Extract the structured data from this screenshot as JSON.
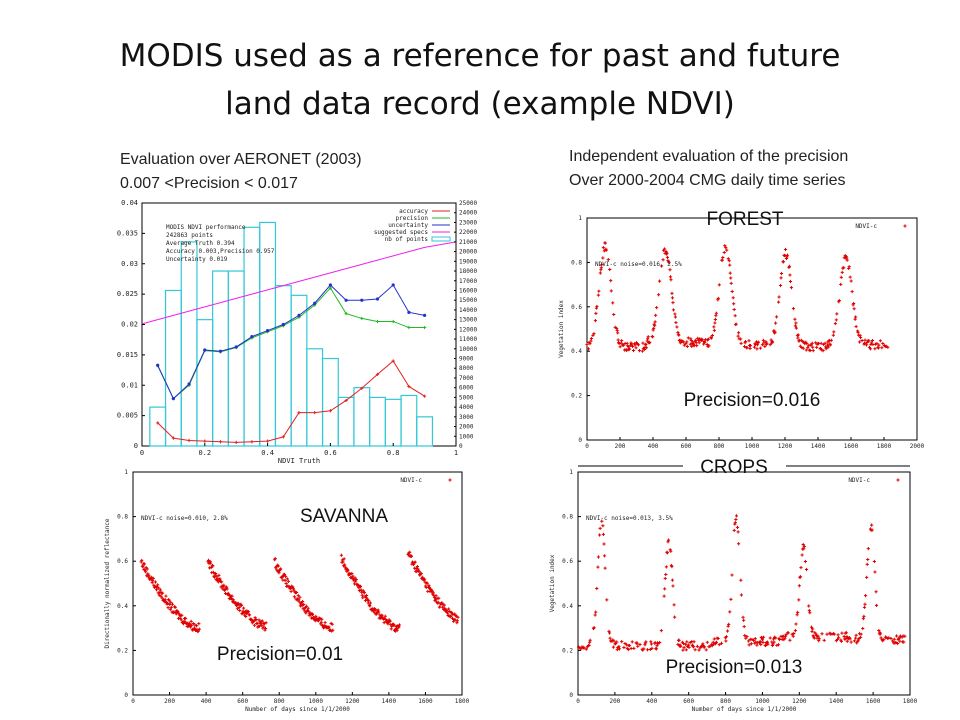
{
  "title": {
    "line1": "MODIS used as a reference for past and future",
    "line2": "land data record (example NDVI)"
  },
  "notes": {
    "left_line1": "Evaluation over AERONET (2003)",
    "left_line2": "0.007 <Precision < 0.017",
    "right_line1": "Independent evaluation of the precision",
    "right_line2": "Over 2000-2004 CMG daily time series"
  },
  "colors": {
    "accuracy": "#e32222",
    "precision": "#22b822",
    "uncertainty": "#2233cc",
    "specs": "#ee22ee",
    "bars": "#33c8d8",
    "points": "#e00000"
  },
  "chart_data": [
    {
      "type": "line",
      "panel": "top-left",
      "xlabel": "NDVI Truth",
      "xlim": [
        0,
        1
      ],
      "ylim": [
        0,
        0.04
      ],
      "y2lim": [
        0,
        25000
      ],
      "xticks": [
        "0",
        "0.2",
        "0.4",
        "0.6",
        "0.8",
        "1"
      ],
      "yticks": [
        "0",
        "0.005",
        "0.01",
        "0.015",
        "0.02",
        "0.025",
        "0.03",
        "0.035",
        "0.04"
      ],
      "y2ticks": [
        "0",
        "1000",
        "2000",
        "3000",
        "4000",
        "5000",
        "6000",
        "7000",
        "8000",
        "9000",
        "10000",
        "11000",
        "12000",
        "13000",
        "14000",
        "15000",
        "16000",
        "17000",
        "18000",
        "19000",
        "20000",
        "21000",
        "22000",
        "23000",
        "24000",
        "25000"
      ],
      "legend": [
        "accuracy",
        "precision",
        "uncertainty",
        "suggested specs",
        "nb of points"
      ],
      "legend_position": "top-right",
      "annotation": [
        "MODIS NDVI performance",
        "242863 points",
        "Average Truth 0.394",
        "Accuracy 0.003,Precision 0.957",
        "Uncertainty 0.019"
      ],
      "x": [
        0.05,
        0.1,
        0.15,
        0.2,
        0.25,
        0.3,
        0.35,
        0.4,
        0.45,
        0.5,
        0.55,
        0.6,
        0.65,
        0.7,
        0.75,
        0.8,
        0.85,
        0.9
      ],
      "series": [
        {
          "name": "accuracy",
          "values": [
            0.0038,
            0.0013,
            0.0009,
            0.0008,
            0.0007,
            0.0006,
            0.0007,
            0.0008,
            0.0015,
            0.0055,
            0.0055,
            0.0058,
            0.0075,
            0.0095,
            0.0118,
            0.014,
            0.0098,
            0.0082
          ]
        },
        {
          "name": "precision",
          "values": [
            0.0132,
            0.0078,
            0.01,
            0.0157,
            0.0155,
            0.0162,
            0.0178,
            0.0188,
            0.0198,
            0.0212,
            0.0232,
            0.026,
            0.0218,
            0.021,
            0.0205,
            0.0205,
            0.0195,
            0.0195
          ]
        },
        {
          "name": "uncertainty",
          "values": [
            0.0133,
            0.0078,
            0.0102,
            0.0158,
            0.0156,
            0.0163,
            0.018,
            0.019,
            0.02,
            0.0215,
            0.0235,
            0.0265,
            0.024,
            0.024,
            0.0242,
            0.0265,
            0.022,
            0.0215
          ]
        },
        {
          "name": "suggested specs",
          "values": [
            0.0208,
            0.0215,
            0.0222,
            0.0229,
            0.0236,
            0.0243,
            0.025,
            0.0257,
            0.0264,
            0.0271,
            0.0278,
            0.0285,
            0.0292,
            0.0299,
            0.0306,
            0.0313,
            0.032,
            0.0327
          ]
        }
      ],
      "bars": {
        "name": "nb of points",
        "values": [
          4000,
          16000,
          21000,
          13000,
          18000,
          18000,
          22500,
          23000,
          16500,
          15500,
          10000,
          9000,
          5000,
          6000,
          5000,
          4800,
          5200,
          3000
        ]
      }
    },
    {
      "type": "scatter",
      "panel": "top-right",
      "ylabel": "Vegetation index",
      "xlim": [
        0,
        2000
      ],
      "ylim": [
        0,
        1
      ],
      "xticks": [
        "0",
        "200",
        "400",
        "600",
        "800",
        "1000",
        "1200",
        "1400",
        "1600",
        "1800",
        "2000"
      ],
      "yticks": [
        "0",
        "0.2",
        "0.4",
        "0.6",
        "0.8",
        "1"
      ],
      "legend": [
        "NDVI-c"
      ],
      "annotation": "NDVI-c noise=0.016, 2.5%",
      "label": "FOREST",
      "precision_text": "Precision=0.016",
      "seasons": [
        {
          "peak": 0.87,
          "low": 0.42
        },
        {
          "peak": 0.86,
          "low": 0.44
        },
        {
          "peak": 0.87,
          "low": 0.43
        },
        {
          "peak": 0.84,
          "low": 0.42
        },
        {
          "peak": 0.82,
          "low": 0.43
        }
      ]
    },
    {
      "type": "scatter",
      "panel": "bottom-left",
      "xlabel": "Number of days since 1/1/2000",
      "ylabel": "Directionally normalized reflectance",
      "xlim": [
        0,
        1800
      ],
      "ylim": [
        0,
        1
      ],
      "xticks": [
        "0",
        "200",
        "400",
        "600",
        "800",
        "1000",
        "1200",
        "1400",
        "1600",
        "1800"
      ],
      "yticks": [
        "0",
        "0.2",
        "0.4",
        "0.6",
        "0.8",
        "1"
      ],
      "legend": [
        "NDVI-c"
      ],
      "annotation": "NDVI-c noise=0.010, 2.8%",
      "label": "SAVANNA",
      "precision_text": "Precision=0.01",
      "seasons": [
        {
          "peak": 0.6,
          "low": 0.3
        },
        {
          "peak": 0.6,
          "low": 0.31
        },
        {
          "peak": 0.6,
          "low": 0.3
        },
        {
          "peak": 0.62,
          "low": 0.3
        },
        {
          "peak": 0.64,
          "low": 0.32
        }
      ]
    },
    {
      "type": "scatter",
      "panel": "bottom-right",
      "xlabel": "Number of days since 1/1/2000",
      "ylabel": "Vegetation index",
      "xlim": [
        0,
        1800
      ],
      "ylim": [
        0,
        1
      ],
      "xticks": [
        "0",
        "200",
        "400",
        "600",
        "800",
        "1000",
        "1200",
        "1400",
        "1600",
        "1800"
      ],
      "yticks": [
        "0",
        "0.2",
        "0.4",
        "0.6",
        "0.8",
        "1"
      ],
      "legend": [
        "NDVI-c"
      ],
      "annotation": "NDVI-c noise=0.013, 3.5%",
      "label": "CROPS",
      "precision_text": "Precision=0.013",
      "seasons": [
        {
          "peak": 0.78,
          "low": 0.22
        },
        {
          "peak": 0.68,
          "low": 0.22
        },
        {
          "peak": 0.79,
          "low": 0.24
        },
        {
          "peak": 0.66,
          "low": 0.26
        },
        {
          "peak": 0.76,
          "low": 0.25
        }
      ]
    }
  ]
}
